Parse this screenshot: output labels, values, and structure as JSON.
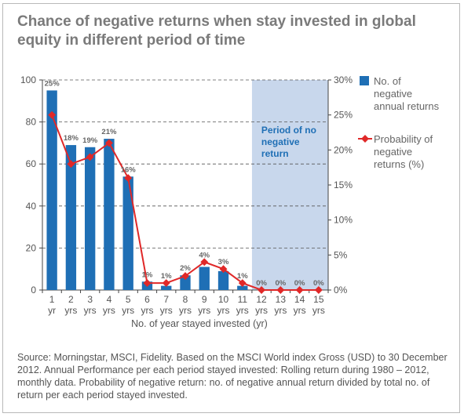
{
  "title": "Chance of negative returns when stay invested in global equity in different period of time",
  "source": "Source: Morningstar, MSCI, Fidelity. Based on the MSCI World index Gross (USD) to 30 December 2012. Annual Performance per each period stayed invested: Rolling return during 1980 – 2012, monthly data. Probability of negative return: no. of negative annual return divided by total no. of return per each period stayed invested.",
  "chart_data": {
    "type": "bar",
    "categories": [
      "1 yr",
      "2 yrs",
      "3 yrs",
      "4 yrs",
      "5 yrs",
      "6 yrs",
      "7 yrs",
      "8 yrs",
      "9 yrs",
      "10 yrs",
      "11 yrs",
      "12 yrs",
      "13 yrs",
      "14 yrs",
      "15 yrs"
    ],
    "category_numbers": [
      "1",
      "2",
      "3",
      "4",
      "5",
      "6",
      "7",
      "8",
      "9",
      "10",
      "11",
      "12",
      "13",
      "14",
      "15"
    ],
    "category_units": [
      "yr",
      "yrs",
      "yrs",
      "yrs",
      "yrs",
      "yrs",
      "yrs",
      "yrs",
      "yrs",
      "yrs",
      "yrs",
      "yrs",
      "yrs",
      "yrs",
      "yrs"
    ],
    "xlabel": "No. of year stayed invested (yr)",
    "ylim_left": [
      0,
      100
    ],
    "yticks_left": [
      "0",
      "20",
      "40",
      "60",
      "80",
      "100"
    ],
    "ylim_right": [
      0,
      30
    ],
    "yticks_right": [
      "0%",
      "5%",
      "10%",
      "15%",
      "20%",
      "25%",
      "30%"
    ],
    "series": [
      {
        "name": "No. of negative annual returns",
        "type": "bar",
        "axis": "left",
        "color": "#1f6fb5",
        "values": [
          95,
          69,
          68,
          72,
          54,
          4,
          2,
          7,
          11,
          9,
          2,
          0,
          0,
          0,
          0
        ]
      },
      {
        "name": "Probability of negative returns (%)",
        "type": "line",
        "axis": "right",
        "color": "#e02828",
        "values": [
          25,
          18,
          19,
          21,
          16,
          1,
          1,
          2,
          4,
          3,
          1,
          0,
          0,
          0,
          0
        ],
        "labels": [
          "25%",
          "18%",
          "19%",
          "21%",
          "16%",
          "1%",
          "1%",
          "2%",
          "4%",
          "3%",
          "1%",
          "0%",
          "0%",
          "0%",
          "0%"
        ]
      }
    ],
    "shaded_region": {
      "from_category": "12 yrs",
      "to_category": "15 yrs",
      "label": "Period of no negative return",
      "color": "#c8d7ec",
      "label_color": "#1f6fb5"
    },
    "grid": "horizontal dashed",
    "legend_position": "right"
  },
  "legend": {
    "bar_label": "No. of negative annual returns",
    "line_label": "Probability of negative returns (%)"
  }
}
